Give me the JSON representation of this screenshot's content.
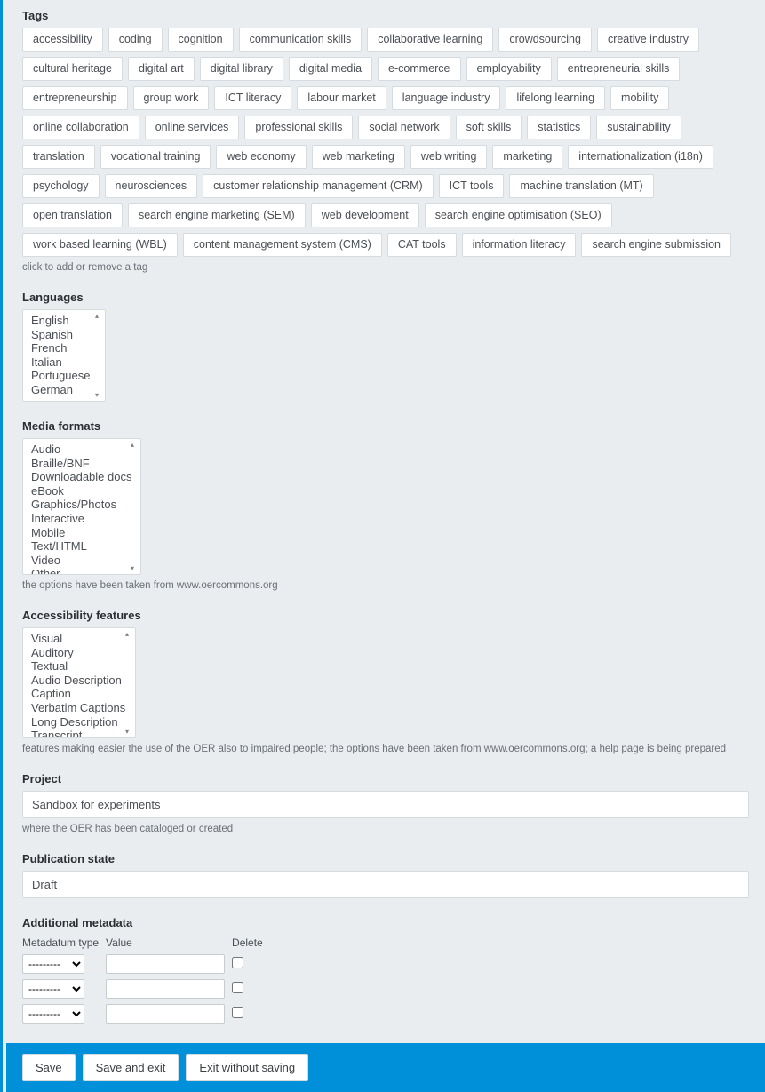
{
  "tags": {
    "title": "Tags",
    "items": [
      "accessibility",
      "coding",
      "cognition",
      "communication skills",
      "collaborative learning",
      "crowdsourcing",
      "creative industry",
      "cultural heritage",
      "digital art",
      "digital library",
      "digital media",
      "e-commerce",
      "employability",
      "entrepreneurial skills",
      "entrepreneurship",
      "group work",
      "ICT literacy",
      "labour market",
      "language industry",
      "lifelong learning",
      "mobility",
      "online collaboration",
      "online services",
      "professional skills",
      "social network",
      "soft skills",
      "statistics",
      "sustainability",
      "translation",
      "vocational training",
      "web economy",
      "web marketing",
      "web writing",
      "marketing",
      "internationalization (i18n)",
      "psychology",
      "neurosciences",
      "customer relationship management (CRM)",
      "ICT tools",
      "machine translation (MT)",
      "open translation",
      "search engine marketing (SEM)",
      "web development",
      "search engine optimisation (SEO)",
      "work based learning (WBL)",
      "content management system (CMS)",
      "CAT tools",
      "information literacy",
      "search engine submission"
    ],
    "help": "click to add or remove a tag"
  },
  "languages": {
    "title": "Languages",
    "options": [
      "English",
      "Spanish",
      "French",
      "Italian",
      "Portuguese",
      "German"
    ]
  },
  "media_formats": {
    "title": "Media formats",
    "options": [
      "Audio",
      "Braille/BNF",
      "Downloadable docs",
      "eBook",
      "Graphics/Photos",
      "Interactive",
      "Mobile",
      "Text/HTML",
      "Video",
      "Other"
    ],
    "help": "the options have been taken from www.oercommons.org"
  },
  "accessibility_features": {
    "title": "Accessibility features",
    "options": [
      "Visual",
      "Auditory",
      "Textual",
      "Audio Description",
      "Caption",
      "Verbatim Captions",
      "Long Description",
      "Transcript"
    ],
    "help": "features making easier the use of the OER also to impaired people; the options have been taken from www.oercommons.org; a help page is being prepared"
  },
  "project": {
    "title": "Project",
    "value": "Sandbox for experiments",
    "help": "where the OER has been cataloged or created"
  },
  "publication_state": {
    "title": "Publication state",
    "value": "Draft"
  },
  "additional_metadata": {
    "title": "Additional metadata",
    "columns": {
      "type": "Metadatum type",
      "value": "Value",
      "delete": "Delete"
    },
    "placeholder_option": "---------",
    "rows": 3
  },
  "footer": {
    "save": "Save",
    "save_exit": "Save and exit",
    "exit": "Exit without saving"
  },
  "colors": {
    "accent": "#0090d9",
    "page_bg": "#e9edf0",
    "field_bg": "#ffffff",
    "border": "#d6dbe0",
    "text": "#333333",
    "muted": "#6b7076"
  }
}
